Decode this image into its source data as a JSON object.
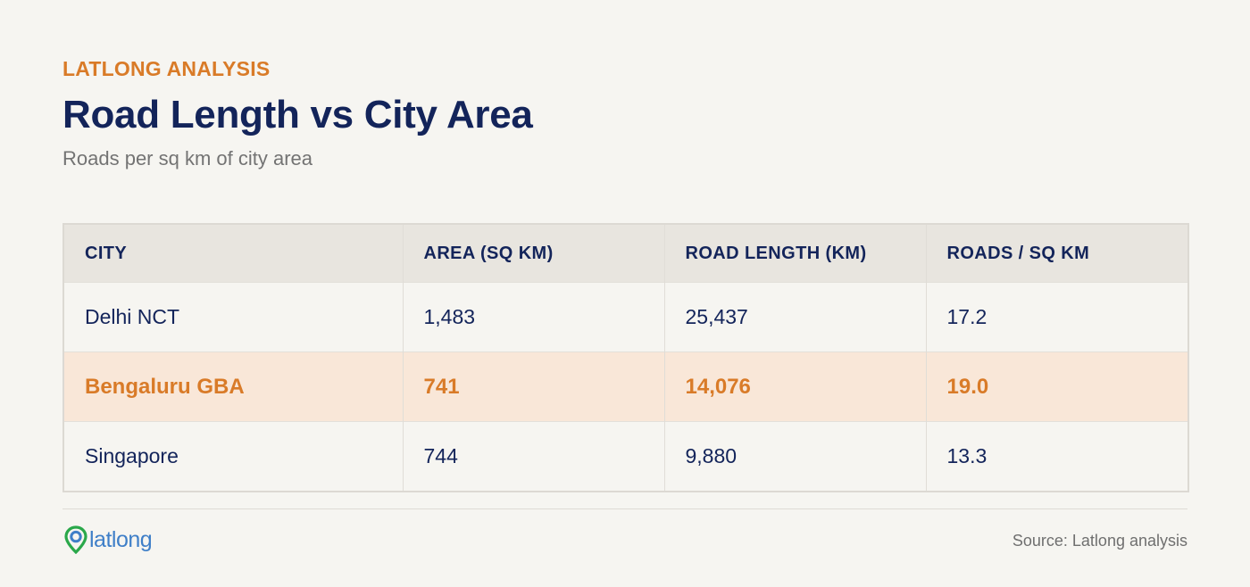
{
  "header": {
    "kicker": "LATLONG ANALYSIS",
    "title": "Road Length vs City Area",
    "subtitle": "Roads per sq km of city area"
  },
  "chart_data": {
    "type": "table",
    "columns": [
      "CITY",
      "AREA (SQ KM)",
      "ROAD LENGTH (KM)",
      "ROADS / SQ KM"
    ],
    "rows": [
      {
        "city": "Delhi NCT",
        "area": "1,483",
        "road_length": "25,437",
        "roads_per_sq_km": "17.2",
        "highlight": false
      },
      {
        "city": "Bengaluru GBA",
        "area": "741",
        "road_length": "14,076",
        "roads_per_sq_km": "19.0",
        "highlight": true
      },
      {
        "city": "Singapore",
        "area": "744",
        "road_length": "9,880",
        "roads_per_sq_km": "13.3",
        "highlight": false
      }
    ]
  },
  "footer": {
    "logo_text": "latlong",
    "source": "Source: Latlong analysis"
  },
  "colors": {
    "accent": "#d97b28",
    "navy": "#13245a",
    "highlight_row": "#f9e7d8",
    "logo_green": "#2aa84a",
    "logo_blue": "#3f7fc8"
  }
}
